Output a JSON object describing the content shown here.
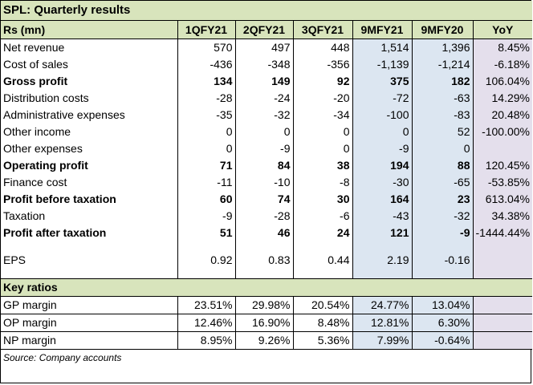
{
  "title": "SPL: Quarterly results",
  "headers": [
    "Rs (mn)",
    "1QFY21",
    "2QFY21",
    "3QFY21",
    "9MFY21",
    "9MFY20",
    "YoY"
  ],
  "rows": [
    {
      "label": "Net revenue",
      "bold": false,
      "values": [
        "570",
        "497",
        "448",
        "1,514",
        "1,396",
        "8.45%"
      ]
    },
    {
      "label": "Cost of sales",
      "bold": false,
      "values": [
        "-436",
        "-348",
        "-356",
        "-1,139",
        "-1,214",
        "-6.18%"
      ]
    },
    {
      "label": "Gross profit",
      "bold": true,
      "values": [
        "134",
        "149",
        "92",
        "375",
        "182",
        "106.04%"
      ]
    },
    {
      "label": "Distribution costs",
      "bold": false,
      "values": [
        "-28",
        "-24",
        "-20",
        "-72",
        "-63",
        "14.29%"
      ]
    },
    {
      "label": "Administrative expenses",
      "bold": false,
      "values": [
        "-35",
        "-32",
        "-34",
        "-100",
        "-83",
        "20.48%"
      ]
    },
    {
      "label": "Other income",
      "bold": false,
      "values": [
        "0",
        "0",
        "0",
        "0",
        "52",
        "-100.00%"
      ]
    },
    {
      "label": "Other expenses",
      "bold": false,
      "values": [
        "0",
        "-9",
        "0",
        "-9",
        "0",
        ""
      ]
    },
    {
      "label": "Operating profit",
      "bold": true,
      "values": [
        "71",
        "84",
        "38",
        "194",
        "88",
        "120.45%"
      ]
    },
    {
      "label": "Finance cost",
      "bold": false,
      "values": [
        "-11",
        "-10",
        "-8",
        "-30",
        "-65",
        "-53.85%"
      ]
    },
    {
      "label": "Profit before taxation",
      "bold": true,
      "values": [
        "60",
        "74",
        "30",
        "164",
        "23",
        "613.04%"
      ]
    },
    {
      "label": "Taxation",
      "bold": false,
      "values": [
        "-9",
        "-28",
        "-6",
        "-43",
        "-32",
        "34.38%"
      ]
    },
    {
      "label": "Profit after taxation",
      "bold": true,
      "values": [
        "51",
        "46",
        "24",
        "121",
        "-9",
        "-1444.44%"
      ]
    }
  ],
  "eps": {
    "label": "EPS",
    "values": [
      "0.92",
      "0.83",
      "0.44",
      "2.19",
      "-0.16",
      ""
    ]
  },
  "key_ratios_label": "Key ratios",
  "ratios": [
    {
      "label": "GP margin",
      "values": [
        "23.51%",
        "29.98%",
        "20.54%",
        "24.77%",
        "13.04%"
      ]
    },
    {
      "label": "OP margin",
      "values": [
        "12.46%",
        "16.90%",
        "8.48%",
        "12.81%",
        "6.30%"
      ]
    },
    {
      "label": "NP margin",
      "values": [
        "8.95%",
        "9.26%",
        "5.36%",
        "7.99%",
        "-0.64%"
      ]
    }
  ],
  "source": "Source: Company accounts",
  "colors": {
    "header_green": "#d8e4bc",
    "nine_month_blue": "#dce6f1",
    "yoy_lavender": "#e4dfec"
  }
}
